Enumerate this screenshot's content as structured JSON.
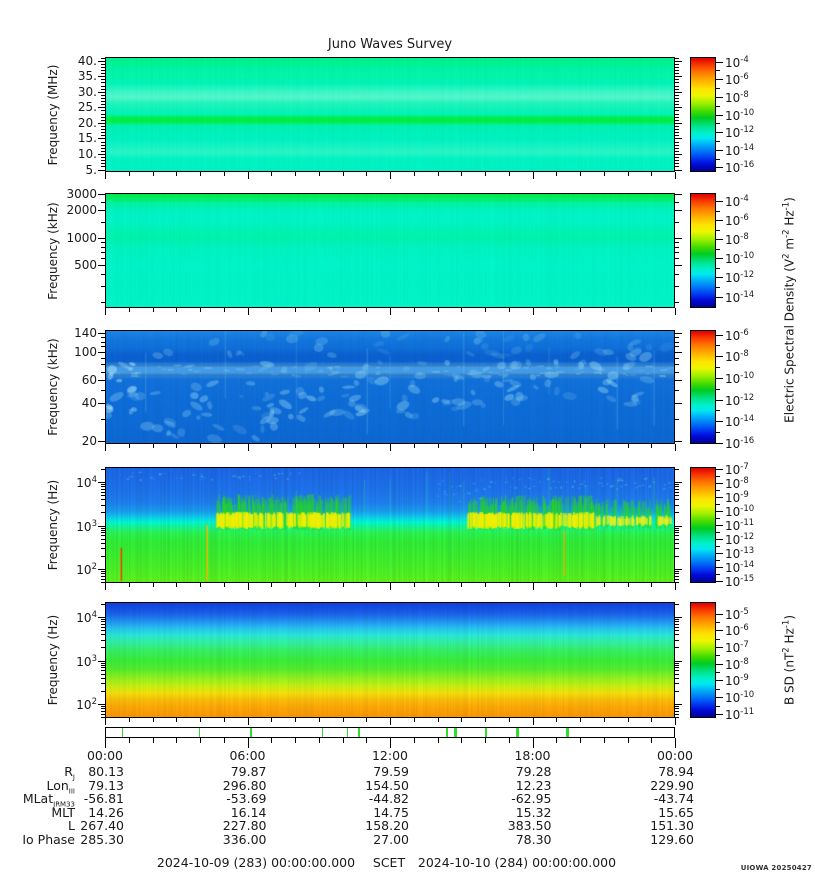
{
  "title": "Juno Waves Survey",
  "credit": "UIOWA 20250427",
  "scet": {
    "left_date": "2024-10-09 (283) 00:00:00.000",
    "label": "SCET",
    "right_date": "2024-10-10 (284) 00:00:00.000"
  },
  "side_labels": {
    "electric": [
      {
        "t": "Electric Spectral Density (V"
      },
      {
        "sup": "2"
      },
      {
        "t": " m"
      },
      {
        "sup": "-2"
      },
      {
        "t": " Hz"
      },
      {
        "sup": "-1"
      },
      {
        "t": ")"
      }
    ],
    "magnetic": [
      {
        "t": "B SD (nT"
      },
      {
        "sup": "2"
      },
      {
        "t": " Hz"
      },
      {
        "sup": "-1"
      },
      {
        "t": ")"
      }
    ]
  },
  "ephemeris": {
    "rows": [
      {
        "label": [
          {
            "t": "R"
          },
          {
            "sub": "J"
          }
        ],
        "values": [
          "80.13",
          "79.87",
          "79.59",
          "79.28",
          "78.94"
        ]
      },
      {
        "label": [
          {
            "t": "Lon"
          },
          {
            "sub": "III"
          }
        ],
        "values": [
          "79.13",
          "296.80",
          "154.50",
          "12.23",
          "229.90"
        ]
      },
      {
        "label": [
          {
            "t": "MLat"
          },
          {
            "sub": "JRM33"
          }
        ],
        "values": [
          "-56.81",
          "-53.69",
          "-44.82",
          "-62.95",
          "-43.74"
        ]
      },
      {
        "label": [
          {
            "t": "MLT"
          }
        ],
        "values": [
          "14.26",
          "16.14",
          "14.75",
          "15.32",
          "15.65"
        ]
      },
      {
        "label": [
          {
            "t": "L"
          }
        ],
        "values": [
          "267.40",
          "227.80",
          "158.20",
          "383.50",
          "151.30"
        ]
      },
      {
        "label": [
          {
            "t": "Io Phase"
          }
        ],
        "values": [
          "285.30",
          "336.00",
          "27.00",
          "78.30",
          "129.60"
        ]
      }
    ]
  },
  "chart_data": {
    "type": "heatmap",
    "figure": "Juno Waves Survey 5-panel spectrogram, 24 hours SCET 2024-10-09",
    "time_axis": {
      "labels": [
        "00:00",
        "06:00",
        "12:00",
        "18:00",
        "00:00"
      ],
      "major_hours": [
        0,
        6,
        12,
        18,
        24
      ],
      "hours_total": 24,
      "minor_step_hours": 1
    },
    "colormap_stops": [
      [
        0,
        "#e00000"
      ],
      [
        0.06,
        "#f93800"
      ],
      [
        0.13,
        "#ff7a00"
      ],
      [
        0.2,
        "#ffb000"
      ],
      [
        0.27,
        "#ffe200"
      ],
      [
        0.33,
        "#eef600"
      ],
      [
        0.4,
        "#a0f000"
      ],
      [
        0.47,
        "#44dc00"
      ],
      [
        0.53,
        "#00cc22"
      ],
      [
        0.6,
        "#00e287"
      ],
      [
        0.66,
        "#00f0c8"
      ],
      [
        0.71,
        "#00e9f2"
      ],
      [
        0.76,
        "#00b4f6"
      ],
      [
        0.82,
        "#007cf8"
      ],
      [
        0.88,
        "#0040f4"
      ],
      [
        0.94,
        "#0009d8"
      ],
      [
        1,
        "#000496"
      ]
    ],
    "event_bar": {
      "color": "#2ce02c",
      "marks": [
        {
          "x": 0.029,
          "w": 1
        },
        {
          "x": 0.164,
          "w": 1
        },
        {
          "x": 0.254,
          "w": 2
        },
        {
          "x": 0.38,
          "w": 1
        },
        {
          "x": 0.424,
          "w": 1
        },
        {
          "x": 0.443,
          "w": 2
        },
        {
          "x": 0.598,
          "w": 2
        },
        {
          "x": 0.612,
          "w": 3
        },
        {
          "x": 0.668,
          "w": 2
        },
        {
          "x": 0.721,
          "w": 3
        },
        {
          "x": 0.81,
          "w": 3
        }
      ]
    },
    "panels": [
      {
        "name": "hf-electric-mhz",
        "ylabel": "Frequency (MHz)",
        "yscale": "linear",
        "ymin": 4.2,
        "ymax": 41.2,
        "minor_step": 1,
        "yticks": [
          {
            "v": 40,
            "label": "40."
          },
          {
            "v": 35,
            "label": "35."
          },
          {
            "v": 30,
            "label": "30."
          },
          {
            "v": 25,
            "label": "25."
          },
          {
            "v": 20,
            "label": "20."
          },
          {
            "v": 15,
            "label": "15."
          },
          {
            "v": 10,
            "label": "10."
          },
          {
            "v": 5,
            "label": "5."
          }
        ],
        "colorbar": {
          "exponents": [
            -4,
            -6,
            -8,
            -10,
            -12,
            -14,
            -16
          ],
          "top": 0.04,
          "bottom": 0.96
        },
        "noise": 0.012,
        "seed": 11,
        "stops": [
          [
            0,
            "#00f28e"
          ],
          [
            0.05,
            "#00f292"
          ],
          [
            0.1,
            "#00f2a8"
          ],
          [
            0.14,
            "#06f4a6"
          ],
          [
            0.22,
            "#00f3b6"
          ],
          [
            0.3,
            "#3ef5c6"
          ],
          [
            0.345,
            "#55f6ca"
          ],
          [
            0.4,
            "#20f3be"
          ],
          [
            0.5,
            "#00f2b4"
          ],
          [
            0.532,
            "#00ee42"
          ],
          [
            0.562,
            "#00ee42"
          ],
          [
            0.6,
            "#00f0b2"
          ],
          [
            0.72,
            "#00f1c0"
          ],
          [
            0.84,
            "#28f4c6"
          ],
          [
            0.9,
            "#00f2c2"
          ],
          [
            1,
            "#00f2c2"
          ]
        ],
        "features": []
      },
      {
        "name": "lf-electric-khz",
        "ylabel": "Frequency (kHz)",
        "yscale": "log",
        "ymin": 170,
        "ymax": 3100,
        "minor_values": [
          200,
          300,
          400,
          600,
          700,
          800,
          900,
          1500,
          2500
        ],
        "yticks": [
          {
            "v": 3000,
            "label": "3000"
          },
          {
            "v": 2000,
            "label": "2000"
          },
          {
            "v": 1000,
            "label": "1000"
          },
          {
            "v": 500,
            "label": "500"
          }
        ],
        "colorbar": {
          "exponents": [
            -4,
            -6,
            -8,
            -10,
            -12,
            -14
          ],
          "top": 0.07,
          "bottom": 0.9
        },
        "noise": 0.012,
        "seed": 22,
        "stops": [
          [
            0,
            "#00ea40"
          ],
          [
            0.035,
            "#00ed6a"
          ],
          [
            0.09,
            "#00f1a8"
          ],
          [
            0.15,
            "#00f3c2"
          ],
          [
            0.24,
            "#00f3c6"
          ],
          [
            0.32,
            "#00f2b2"
          ],
          [
            0.4,
            "#00f1ac"
          ],
          [
            0.47,
            "#00f2be"
          ],
          [
            0.62,
            "#00f3c8"
          ],
          [
            0.8,
            "#00f2c4"
          ],
          [
            1,
            "#00f3c8"
          ]
        ],
        "features": []
      },
      {
        "name": "mf-electric-khz",
        "ylabel": "Frequency (kHz)",
        "yscale": "log",
        "ymin": 19,
        "ymax": 148,
        "minor_values": [
          20,
          30,
          40,
          50,
          60,
          70,
          80,
          90,
          100,
          110,
          120,
          130,
          140
        ],
        "yticks": [
          {
            "v": 140,
            "label": "140"
          },
          {
            "v": 100,
            "label": "100"
          },
          {
            "v": 60,
            "label": "60"
          },
          {
            "v": 40,
            "label": "40"
          },
          {
            "v": 20,
            "label": "20"
          }
        ],
        "colorbar": {
          "exponents": [
            -6,
            -8,
            -10,
            -12,
            -14,
            -16
          ],
          "top": 0.04,
          "bottom": 0.99
        },
        "noise": 0.02,
        "seed": 33,
        "stops": [
          [
            0,
            "#1a84e4"
          ],
          [
            0.07,
            "#1376dc"
          ],
          [
            0.15,
            "#0f6ed8"
          ],
          [
            0.21,
            "#0b60ce"
          ],
          [
            0.27,
            "#0b60ce"
          ],
          [
            0.31,
            "#3c96e6"
          ],
          [
            0.38,
            "#3c96e6"
          ],
          [
            0.43,
            "#1170d8"
          ],
          [
            0.6,
            "#0e6cd6"
          ],
          [
            0.8,
            "#0d6ad4"
          ],
          [
            1,
            "#0c66d2"
          ]
        ],
        "features": [
          {
            "kind": "hband",
            "y0": 0.29,
            "y1": 0.41,
            "color": "#4aa0e8",
            "alpha": 0.5
          },
          {
            "kind": "dashes",
            "x0": 0,
            "x1": 1,
            "y0": 0.3,
            "y1": 0.4,
            "n": 90,
            "color": "#8fd2f2",
            "alpha": 0.45
          },
          {
            "kind": "blobs",
            "x0": 0.0,
            "x1": 0.05,
            "y0": 0.25,
            "y1": 0.75,
            "n": 14,
            "color": "#b8ecfa",
            "alpha": 0.55
          },
          {
            "kind": "blobs",
            "x0": 0.04,
            "x1": 0.3,
            "y0": 0.45,
            "y1": 0.97,
            "n": 34,
            "color": "#9adef6",
            "alpha": 0.42
          },
          {
            "kind": "blobs",
            "x0": 0.28,
            "x1": 0.62,
            "y0": 0.28,
            "y1": 0.78,
            "n": 48,
            "color": "#9adef6",
            "alpha": 0.45
          },
          {
            "kind": "blobs",
            "x0": 0.6,
            "x1": 0.99,
            "y0": 0.18,
            "y1": 0.7,
            "n": 52,
            "color": "#9adef6",
            "alpha": 0.45
          },
          {
            "kind": "blobs",
            "x0": 0.02,
            "x1": 0.99,
            "y0": 0.02,
            "y1": 0.22,
            "n": 40,
            "color": "#7cc8f0",
            "alpha": 0.35
          },
          {
            "kind": "streaks",
            "xs": [
              0.07,
              0.21,
              0.335,
              0.46,
              0.5,
              0.63,
              0.7,
              0.78,
              0.9,
              0.965
            ],
            "color": "#8fd8f4",
            "alpha": 0.3
          }
        ]
      },
      {
        "name": "vlf-electric-hz",
        "ylabel": "Frequency (Hz)",
        "yscale": "log",
        "ymin": 48,
        "ymax": 22000,
        "yticks": [
          {
            "v": 10000,
            "exp": 4
          },
          {
            "v": 1000,
            "exp": 3
          },
          {
            "v": 100,
            "exp": 2
          }
        ],
        "colorbar": {
          "exponents": [
            -7,
            -8,
            -9,
            -10,
            -11,
            -12,
            -13,
            -14,
            -15
          ],
          "top": 0.02,
          "bottom": 0.985
        },
        "noise": 0.05,
        "seed": 44,
        "stops": [
          [
            0,
            "#1b64e2"
          ],
          [
            0.18,
            "#1d6fe5"
          ],
          [
            0.3,
            "#1e7ce8"
          ],
          [
            0.38,
            "#189ae9"
          ],
          [
            0.44,
            "#0cd0e8"
          ],
          [
            0.475,
            "#00f2cc"
          ],
          [
            0.52,
            "#17f08e"
          ],
          [
            0.57,
            "#2aee4e"
          ],
          [
            0.65,
            "#2fe836"
          ],
          [
            0.78,
            "#3ce92c"
          ],
          [
            0.9,
            "#4aeb24"
          ],
          [
            1,
            "#59ed1e"
          ]
        ],
        "features": [
          {
            "kind": "emission",
            "x0": 0.195,
            "x1": 0.43,
            "yTop": 0.26,
            "yBase": 0.53,
            "coreY0": 0.4,
            "coreY1": 0.52,
            "n": 220,
            "halo": "#27d91c",
            "core": "#f2ef00"
          },
          {
            "kind": "emission",
            "x0": 0.635,
            "x1": 0.86,
            "yTop": 0.27,
            "yBase": 0.53,
            "coreY0": 0.4,
            "coreY1": 0.52,
            "n": 200,
            "halo": "#27d91c",
            "core": "#f2ef00"
          },
          {
            "kind": "emission",
            "x0": 0.86,
            "x1": 0.995,
            "yTop": 0.3,
            "yBase": 0.52,
            "coreY0": 0.43,
            "coreY1": 0.5,
            "n": 90,
            "halo": "#27d91c",
            "core": "#e8ee20"
          },
          {
            "kind": "speckle",
            "x0": 0.02,
            "x1": 0.35,
            "y0": 0.03,
            "y1": 0.1,
            "n": 40,
            "color": "#49c8ee",
            "alpha": 0.6
          },
          {
            "kind": "speckle",
            "x0": 0.66,
            "x1": 1.0,
            "y0": 0.08,
            "y1": 0.18,
            "n": 60,
            "color": "#49c8ee",
            "alpha": 0.6
          },
          {
            "kind": "speckle",
            "x0": 0.56,
            "x1": 0.66,
            "y0": 0.1,
            "y1": 0.3,
            "n": 25,
            "color": "#49c8ee",
            "alpha": 0.5
          },
          {
            "kind": "streaks",
            "xs": [
              0.335,
              0.455,
              0.5,
              0.565,
              0.605,
              0.63,
              0.78,
              0.845,
              0.9,
              0.965
            ],
            "color": "#29e87c",
            "alpha": 0.35
          },
          {
            "kind": "spike",
            "x": 0.027,
            "y0": 0.7,
            "y1": 0.99,
            "color": "#ff2e00",
            "w": 1.6
          },
          {
            "kind": "spike",
            "x": 0.178,
            "y0": 0.5,
            "y1": 0.99,
            "color": "#ffb300",
            "w": 1.6
          },
          {
            "kind": "spike",
            "x": 0.807,
            "y0": 0.55,
            "y1": 0.95,
            "color": "#ffa500",
            "w": 1.3
          }
        ]
      },
      {
        "name": "magnetic-hz",
        "ylabel": "Frequency (Hz)",
        "yscale": "log",
        "ymin": 48,
        "ymax": 22000,
        "yticks": [
          {
            "v": 10000,
            "exp": 4
          },
          {
            "v": 1000,
            "exp": 3
          },
          {
            "v": 100,
            "exp": 2
          }
        ],
        "colorbar": {
          "exponents": [
            -5,
            -6,
            -7,
            -8,
            -9,
            -10,
            -11
          ],
          "top": 0.1,
          "bottom": 0.965
        },
        "noise": 0.03,
        "seed": 55,
        "stops": [
          [
            0,
            "#1243dc"
          ],
          [
            0.05,
            "#1650e2"
          ],
          [
            0.1,
            "#1b66e8"
          ],
          [
            0.16,
            "#2193ee"
          ],
          [
            0.22,
            "#26c1ee"
          ],
          [
            0.28,
            "#2ae4d4"
          ],
          [
            0.34,
            "#30eda4"
          ],
          [
            0.42,
            "#35ec62"
          ],
          [
            0.5,
            "#39e93a"
          ],
          [
            0.58,
            "#51ea2e"
          ],
          [
            0.66,
            "#8fee1f"
          ],
          [
            0.73,
            "#c4ec14"
          ],
          [
            0.79,
            "#eede0c"
          ],
          [
            0.85,
            "#f6bc08"
          ],
          [
            0.92,
            "#f8a406"
          ],
          [
            1,
            "#f79305"
          ]
        ],
        "features": [
          {
            "kind": "speckle",
            "x0": 0.43,
            "x1": 0.75,
            "y0": 0.38,
            "y1": 0.5,
            "n": 70,
            "color": "#2fe97c",
            "alpha": 0.25
          }
        ]
      }
    ]
  }
}
